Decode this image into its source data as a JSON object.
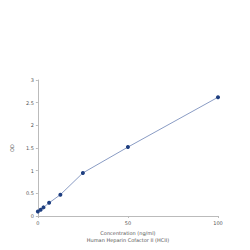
{
  "chart_data": {
    "type": "line",
    "xlabel": "Concentration (ng/ml)\nHuman Heparin Cofactor II (HCII)",
    "ylabel": "OD",
    "x": [
      0,
      1.56,
      3.125,
      6.25,
      12.5,
      25,
      50,
      100
    ],
    "values": [
      0.1,
      0.14,
      0.19,
      0.29,
      0.47,
      0.95,
      1.52,
      2.62
    ],
    "color": "#1f3f80",
    "marker": "circle",
    "xlim": [
      0,
      100
    ],
    "xticks": [
      0,
      50,
      100
    ],
    "ylim": [
      0,
      3
    ],
    "yticks": [
      0,
      0.5,
      1,
      1.5,
      2,
      2.5,
      3
    ],
    "grid": false
  }
}
